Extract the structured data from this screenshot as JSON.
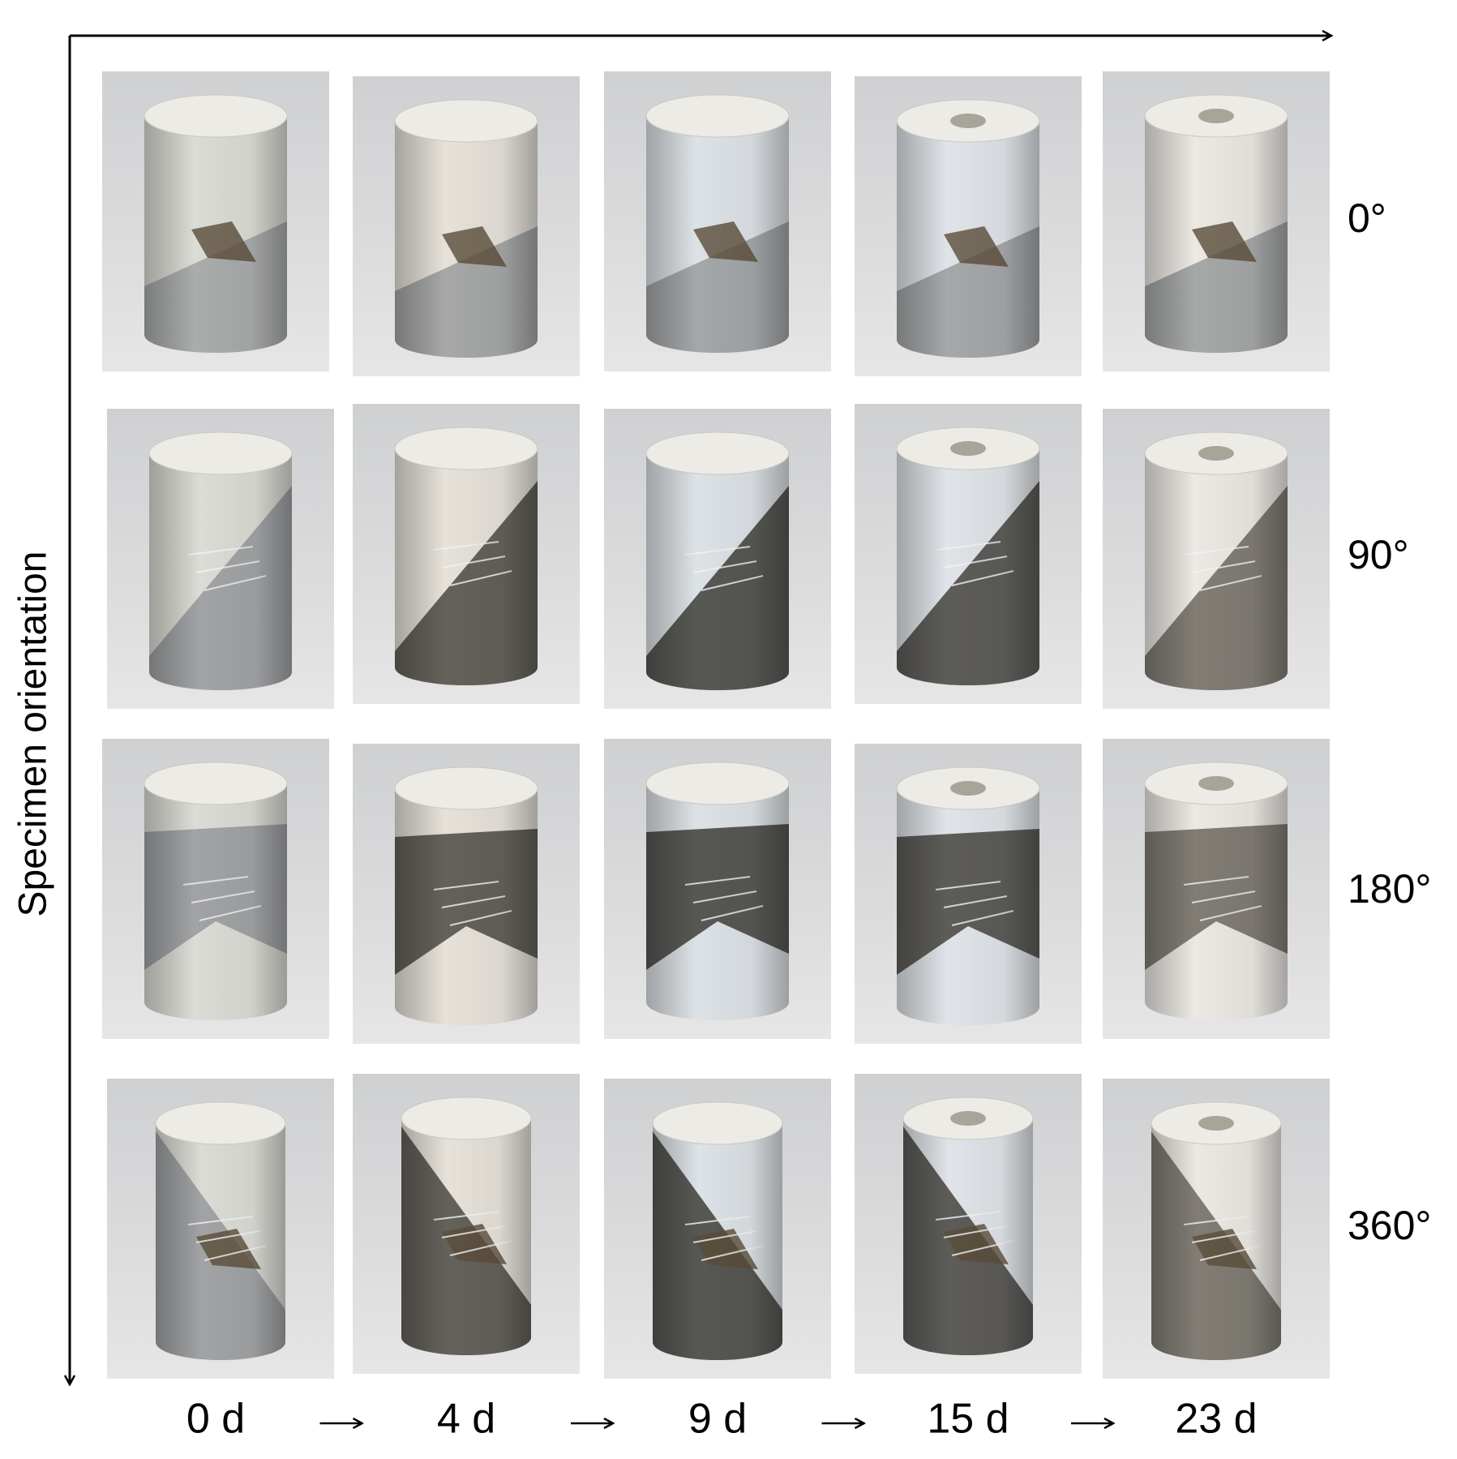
{
  "axis_label": "Specimen orientation",
  "row_labels": [
    "0°",
    "90°",
    "180°",
    "360°"
  ],
  "column_labels": [
    "0 d",
    "4 d",
    "9 d",
    "15 d",
    "23 d"
  ]
}
